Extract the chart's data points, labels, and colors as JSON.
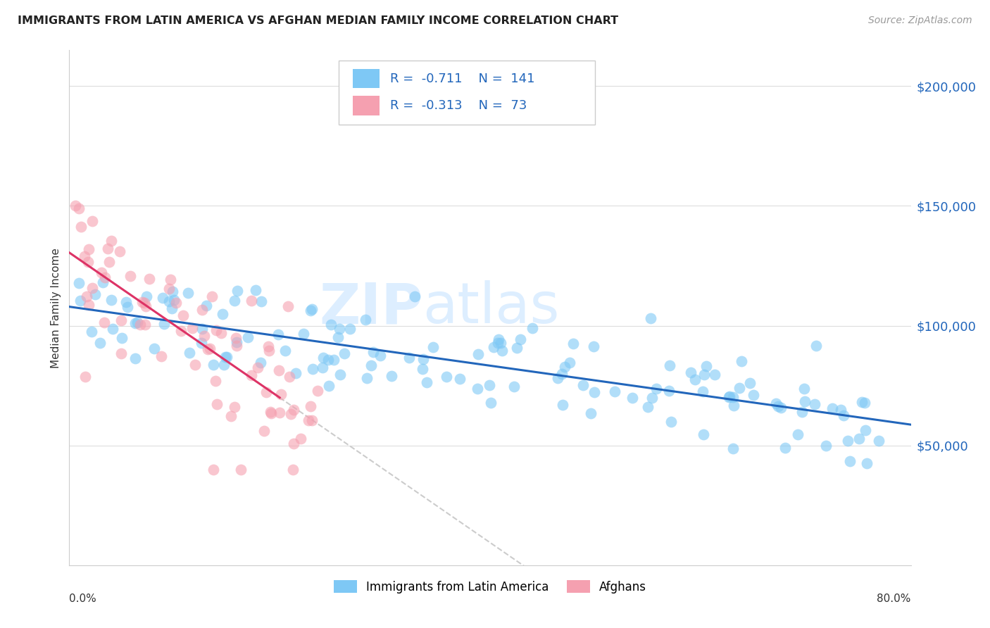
{
  "title": "IMMIGRANTS FROM LATIN AMERICA VS AFGHAN MEDIAN FAMILY INCOME CORRELATION CHART",
  "source": "Source: ZipAtlas.com",
  "ylabel": "Median Family Income",
  "yticks": [
    0,
    50000,
    100000,
    150000,
    200000
  ],
  "ytick_labels": [
    "",
    "$50,000",
    "$100,000",
    "$150,000",
    "$200,000"
  ],
  "xmin": 0.0,
  "xmax": 80.0,
  "ymin": 0,
  "ymax": 215000,
  "legend_r1": "-0.711",
  "legend_n1": "141",
  "legend_r2": "-0.313",
  "legend_n2": "73",
  "legend_label1": "Immigrants from Latin America",
  "legend_label2": "Afghans",
  "blue_color": "#7ec8f5",
  "pink_color": "#f5a0b0",
  "blue_line_color": "#2266bb",
  "pink_line_color": "#dd3366",
  "dash_color": "#cccccc",
  "watermark": "ZIPatlas",
  "blue_intercept": 105000,
  "blue_slope": -580,
  "blue_noise": 11000,
  "blue_x_min": 0.5,
  "blue_x_max": 78.0,
  "blue_n": 141,
  "pink_intercept": 130000,
  "pink_slope": -3000,
  "pink_noise": 18000,
  "pink_x_min": 0.2,
  "pink_x_max": 24.0,
  "pink_n": 73,
  "pink_line_x_end": 20.0,
  "pink_dash_x_end": 48.0
}
